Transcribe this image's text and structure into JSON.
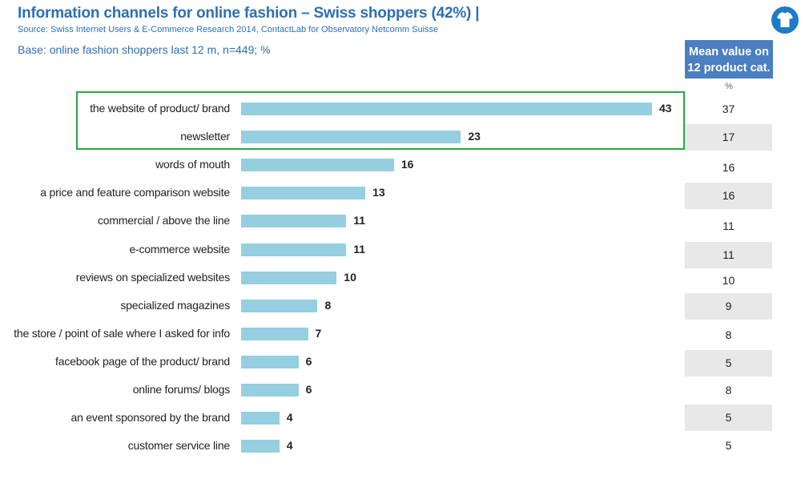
{
  "header": {
    "title": "Information channels for online fashion – Swiss shoppers (42%) |",
    "source": "Source: Swiss Internet Users & E-Commerce Research 2014, ContactLab for Observatory Netcomm Suisse",
    "base": "Base: online fashion shoppers last 12 m, n=449; %"
  },
  "logo": {
    "icon": "tshirt-icon",
    "color": "#1e7bc7"
  },
  "mean_column": {
    "header_line1": "Mean value on",
    "header_line2": "12 product cat.",
    "unit": "%",
    "values": [
      "37",
      "17",
      "16",
      "16",
      "11",
      "11",
      "10",
      "9",
      "8",
      "5",
      "8",
      "5",
      "5"
    ]
  },
  "chart_data": {
    "type": "bar",
    "orientation": "horizontal",
    "title": "Information channels for online fashion – Swiss shoppers (42%) |",
    "categories": [
      "the website of product/ brand",
      "newsletter",
      "words of mouth",
      "a price and feature comparison website",
      "commercial / above the line",
      "e-commerce website",
      "reviews on specialized websites",
      "specialized magazines",
      "the store / point of sale where I asked for info",
      "facebook page of the product/ brand",
      "online forums/ blogs",
      "an event sponsored by the brand",
      "customer service line"
    ],
    "values": [
      43,
      23,
      16,
      13,
      11,
      11,
      10,
      8,
      7,
      6,
      6,
      4,
      4
    ],
    "value_labels": [
      "43",
      "23",
      "16",
      "13",
      "11",
      "11",
      "10",
      "8",
      "7",
      "6",
      "6",
      "4",
      "4"
    ],
    "xlim": [
      0,
      43
    ],
    "bar_color": "#96cfe0",
    "highlight_color": "#27a843",
    "highlighted_categories": [
      "the website of product/ brand",
      "newsletter"
    ],
    "grid": false
  }
}
